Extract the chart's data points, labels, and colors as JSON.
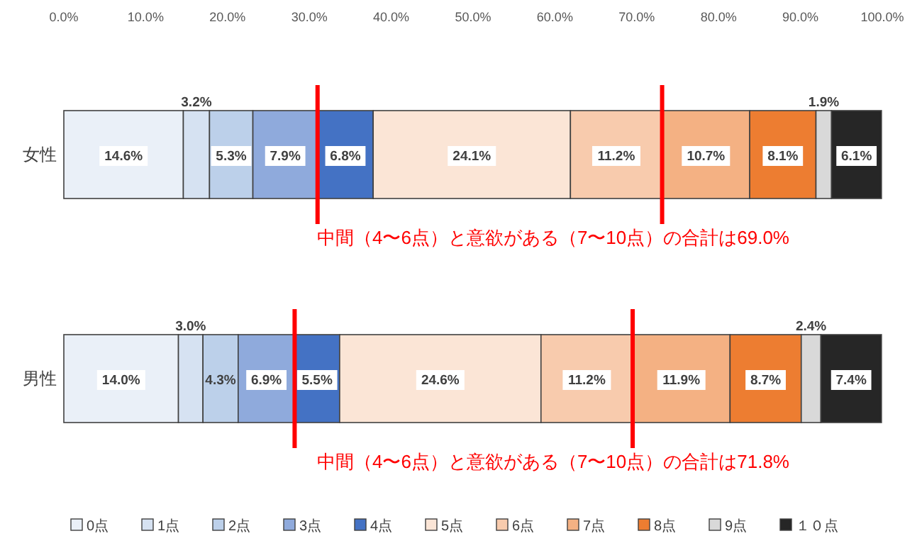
{
  "chart_data": [
    {
      "type": "bar",
      "orientation": "horizontal",
      "stacked": true,
      "categories": [
        "女性"
      ],
      "xlim": [
        0,
        100
      ],
      "xticks": [
        {
          "value": 0,
          "label": "0.0%"
        },
        {
          "value": 10,
          "label": "10.0%"
        },
        {
          "value": 20,
          "label": "20.0%"
        },
        {
          "value": 30,
          "label": "30.0%"
        },
        {
          "value": 40,
          "label": "40.0%"
        },
        {
          "value": 50,
          "label": "50.0%"
        },
        {
          "value": 60,
          "label": "60.0%"
        },
        {
          "value": 70,
          "label": "70.0%"
        },
        {
          "value": 80,
          "label": "80.0%"
        },
        {
          "value": 90,
          "label": "90.0%"
        },
        {
          "value": 100,
          "label": "100.0%"
        }
      ],
      "series": [
        {
          "color": "#eaf0f8",
          "values": [
            14.6
          ],
          "value_labels": [
            "14.6%"
          ]
        },
        {
          "color": "#d6e2f2",
          "values": [
            3.2
          ],
          "value_labels": [
            "3.2%"
          ]
        },
        {
          "color": "#bcd0ea",
          "values": [
            5.3
          ],
          "value_labels": [
            "5.3%"
          ]
        },
        {
          "color": "#8faadc",
          "values": [
            7.9
          ],
          "value_labels": [
            "7.9%"
          ]
        },
        {
          "color": "#4472c4",
          "values": [
            6.8
          ],
          "value_labels": [
            "6.8%"
          ]
        },
        {
          "color": "#fbe5d6",
          "values": [
            24.1
          ],
          "value_labels": [
            "24.1%"
          ]
        },
        {
          "color": "#f8cbad",
          "values": [
            11.2
          ],
          "value_labels": [
            "11.2%"
          ]
        },
        {
          "color": "#f4b183",
          "values": [
            10.7
          ],
          "value_labels": [
            "10.7%"
          ]
        },
        {
          "color": "#ed7d31",
          "values": [
            8.1
          ],
          "value_labels": [
            "8.1%"
          ]
        },
        {
          "color": "#d9d9d9",
          "values": [
            1.9
          ],
          "value_labels": [
            "1.9%"
          ]
        },
        {
          "color": "#262626",
          "values": [
            6.1
          ],
          "value_labels": [
            "6.1%"
          ]
        }
      ],
      "ref_lines": [
        {
          "axis": "x",
          "value": 31.0,
          "color": "#ff0000"
        },
        {
          "axis": "x",
          "value": 73.1,
          "color": "#ff0000"
        }
      ],
      "annotations": [
        "中間（4〜6点）と意欲がある（7〜10点）の合計は69.0%"
      ]
    },
    {
      "type": "bar",
      "orientation": "horizontal",
      "stacked": true,
      "categories": [
        "男性"
      ],
      "xlim": [
        0,
        100
      ],
      "tick_labels": "y",
      "legend": "bottom",
      "series": [
        {
          "name": "0点",
          "color": "#eaf0f8",
          "values": [
            14.0
          ],
          "value_labels": [
            "14.0%"
          ]
        },
        {
          "name": "1点",
          "color": "#d6e2f2",
          "values": [
            3.0
          ],
          "value_labels": [
            "3.0%"
          ]
        },
        {
          "name": "2点",
          "color": "#bcd0ea",
          "values": [
            4.3
          ],
          "value_labels": [
            "4.3%"
          ]
        },
        {
          "name": "3点",
          "color": "#8faadc",
          "values": [
            6.9
          ],
          "value_labels": [
            "6.9%"
          ]
        },
        {
          "name": "4点",
          "color": "#4472c4",
          "values": [
            5.5
          ],
          "value_labels": [
            "5.5%"
          ]
        },
        {
          "name": "5点",
          "color": "#fbe5d6",
          "values": [
            24.6
          ],
          "value_labels": [
            "24.6%"
          ]
        },
        {
          "name": "6点",
          "color": "#f8cbad",
          "values": [
            11.2
          ],
          "value_labels": [
            "11.2%"
          ]
        },
        {
          "name": "7点",
          "color": "#f4b183",
          "values": [
            11.9
          ],
          "value_labels": [
            "11.9%"
          ]
        },
        {
          "name": "8点",
          "color": "#ed7d31",
          "values": [
            8.7
          ],
          "value_labels": [
            "8.7%"
          ]
        },
        {
          "name": "9点",
          "color": "#d9d9d9",
          "values": [
            2.4
          ],
          "value_labels": [
            "2.4%"
          ]
        },
        {
          "name": "１０点",
          "color": "#262626",
          "values": [
            7.4
          ],
          "value_labels": [
            "7.4%"
          ]
        }
      ],
      "ref_lines": [
        {
          "axis": "x",
          "value": 28.2,
          "color": "#ff0000"
        },
        {
          "axis": "x",
          "value": 69.5,
          "color": "#ff0000"
        }
      ],
      "annotations": [
        "中間（4〜6点）と意欲がある（7〜10点）の合計は71.8%"
      ]
    }
  ]
}
